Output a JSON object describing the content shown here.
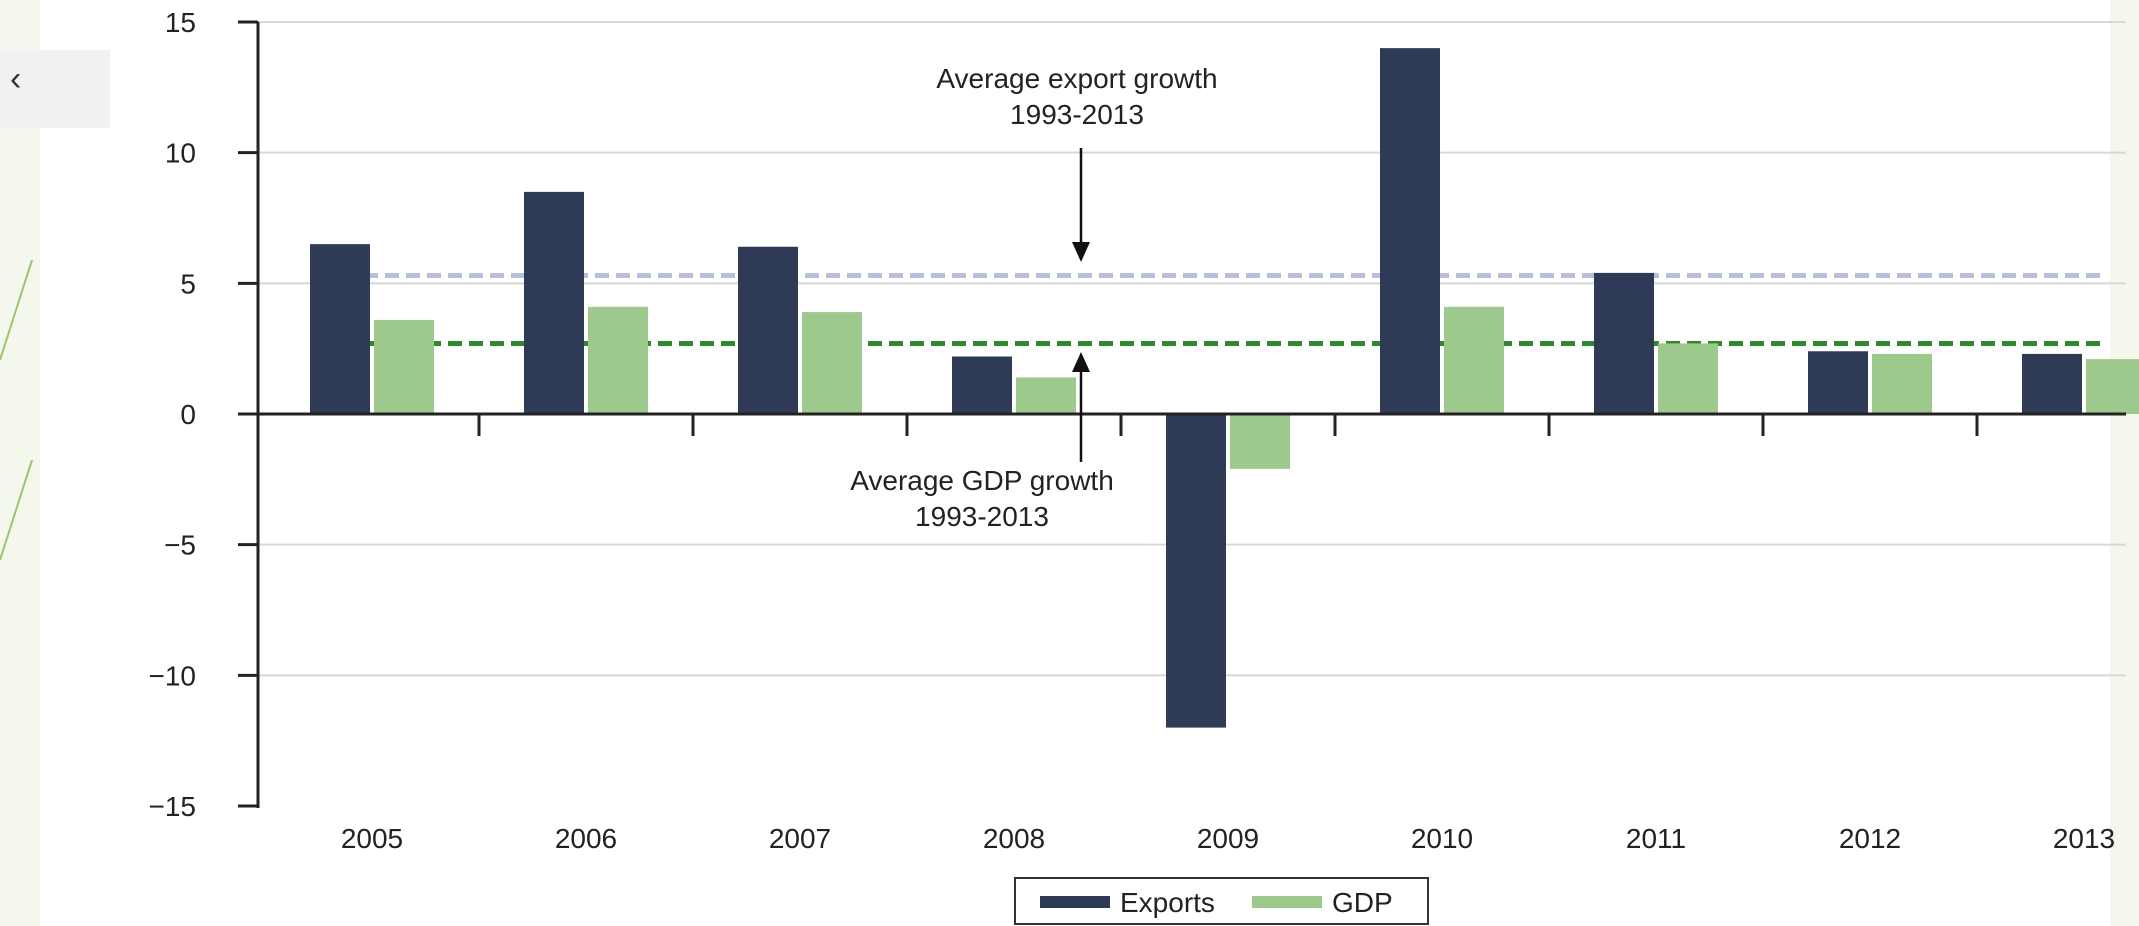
{
  "slide": {
    "back_glyph": "‹",
    "accent_color": "#9bc46f"
  },
  "chart_data": {
    "type": "bar",
    "title": "",
    "xlabel": "",
    "ylabel": "",
    "categories": [
      "2005",
      "2006",
      "2007",
      "2008",
      "2009",
      "2010",
      "2011",
      "2012",
      "2013"
    ],
    "series": [
      {
        "name": "Exports",
        "color": "#2e3a56",
        "values": [
          6.5,
          8.5,
          6.4,
          2.2,
          -12.0,
          14.0,
          5.4,
          2.4,
          2.3
        ]
      },
      {
        "name": "GDP",
        "color": "#9ec98c",
        "values": [
          3.6,
          4.1,
          3.9,
          1.4,
          -2.1,
          4.1,
          2.7,
          2.3,
          2.1
        ]
      }
    ],
    "ylim": [
      -15,
      15
    ],
    "yticks": [
      15,
      10,
      5,
      0,
      -5,
      -10,
      -15
    ],
    "ytick_labels": [
      "15",
      "10",
      "5",
      "0",
      "−5",
      "−10",
      "−15"
    ],
    "grid": true,
    "reference_lines": [
      {
        "name": "Average export growth",
        "value": 5.3,
        "color": "#b7bfda",
        "label_line1": "Average export growth",
        "label_line2": "1993-2013"
      },
      {
        "name": "Average GDP growth",
        "value": 2.7,
        "color": "#2f8a2f",
        "label_line1": "Average GDP growth",
        "label_line2": "1993-2013"
      }
    ],
    "legend": {
      "placement": "bottom-center",
      "entries": [
        "Exports",
        "GDP"
      ]
    }
  }
}
